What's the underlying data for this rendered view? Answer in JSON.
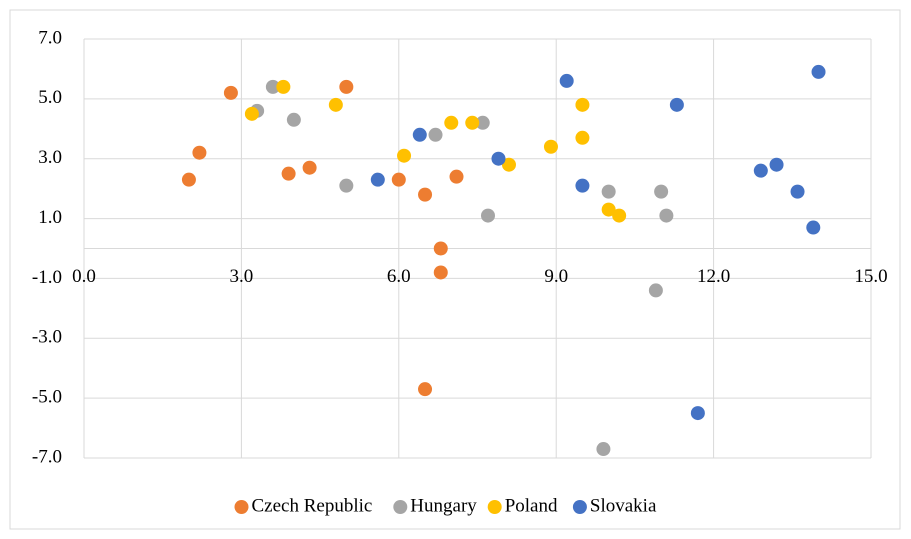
{
  "chart_data": {
    "type": "scatter",
    "xlim": [
      0,
      15
    ],
    "xticks": [
      {
        "value": 0,
        "label": "0.0"
      },
      {
        "value": 3,
        "label": "3.0"
      },
      {
        "value": 6,
        "label": "6.0"
      },
      {
        "value": 9,
        "label": "9.0"
      },
      {
        "value": 12,
        "label": "12.0"
      },
      {
        "value": 15,
        "label": "15.0"
      }
    ],
    "ylim": [
      -7,
      7
    ],
    "yticks": [
      {
        "value": -7,
        "label": "-7.0"
      },
      {
        "value": -5,
        "label": "-5.0"
      },
      {
        "value": -3,
        "label": "-3.0"
      },
      {
        "value": -1,
        "label": "-1.0"
      },
      {
        "value": 1,
        "label": "1.0"
      },
      {
        "value": 3,
        "label": "3.0"
      },
      {
        "value": 5,
        "label": "5.0"
      },
      {
        "value": 7,
        "label": "7.0"
      }
    ],
    "grid": true,
    "legend": "bottom",
    "series": [
      {
        "name": "Czech Republic",
        "color": "#ED7D31",
        "x": [
          2.0,
          2.2,
          2.8,
          3.9,
          4.3,
          5.0,
          6.0,
          6.5,
          7.1,
          6.8,
          6.8,
          6.5
        ],
        "values": [
          2.3,
          3.2,
          5.2,
          2.5,
          2.7,
          5.4,
          2.3,
          1.8,
          2.4,
          0.0,
          -0.8,
          -4.7
        ]
      },
      {
        "name": "Hungary",
        "color": "#A5A5A5",
        "x": [
          3.3,
          3.6,
          4.0,
          5.0,
          6.7,
          7.6,
          7.7,
          10.0,
          11.0,
          11.1,
          10.9,
          9.9
        ],
        "values": [
          4.6,
          5.4,
          4.3,
          2.1,
          3.8,
          4.2,
          1.1,
          1.9,
          1.9,
          1.1,
          -1.4,
          -6.7
        ]
      },
      {
        "name": "Poland",
        "color": "#FFC000",
        "x": [
          3.2,
          3.8,
          4.8,
          6.1,
          7.0,
          7.4,
          8.1,
          8.9,
          9.5,
          9.5,
          10.0,
          10.2
        ],
        "values": [
          4.5,
          5.4,
          4.8,
          3.1,
          4.2,
          4.2,
          2.8,
          3.4,
          4.8,
          3.7,
          1.3,
          1.1
        ]
      },
      {
        "name": "Slovakia",
        "color": "#4472C4",
        "x": [
          5.6,
          6.4,
          7.9,
          9.2,
          9.5,
          11.3,
          12.9,
          13.2,
          13.6,
          13.9,
          14.0,
          11.7
        ],
        "values": [
          2.3,
          3.8,
          3.0,
          5.6,
          2.1,
          4.8,
          2.6,
          2.8,
          1.9,
          0.7,
          5.9,
          -5.5
        ]
      }
    ]
  }
}
